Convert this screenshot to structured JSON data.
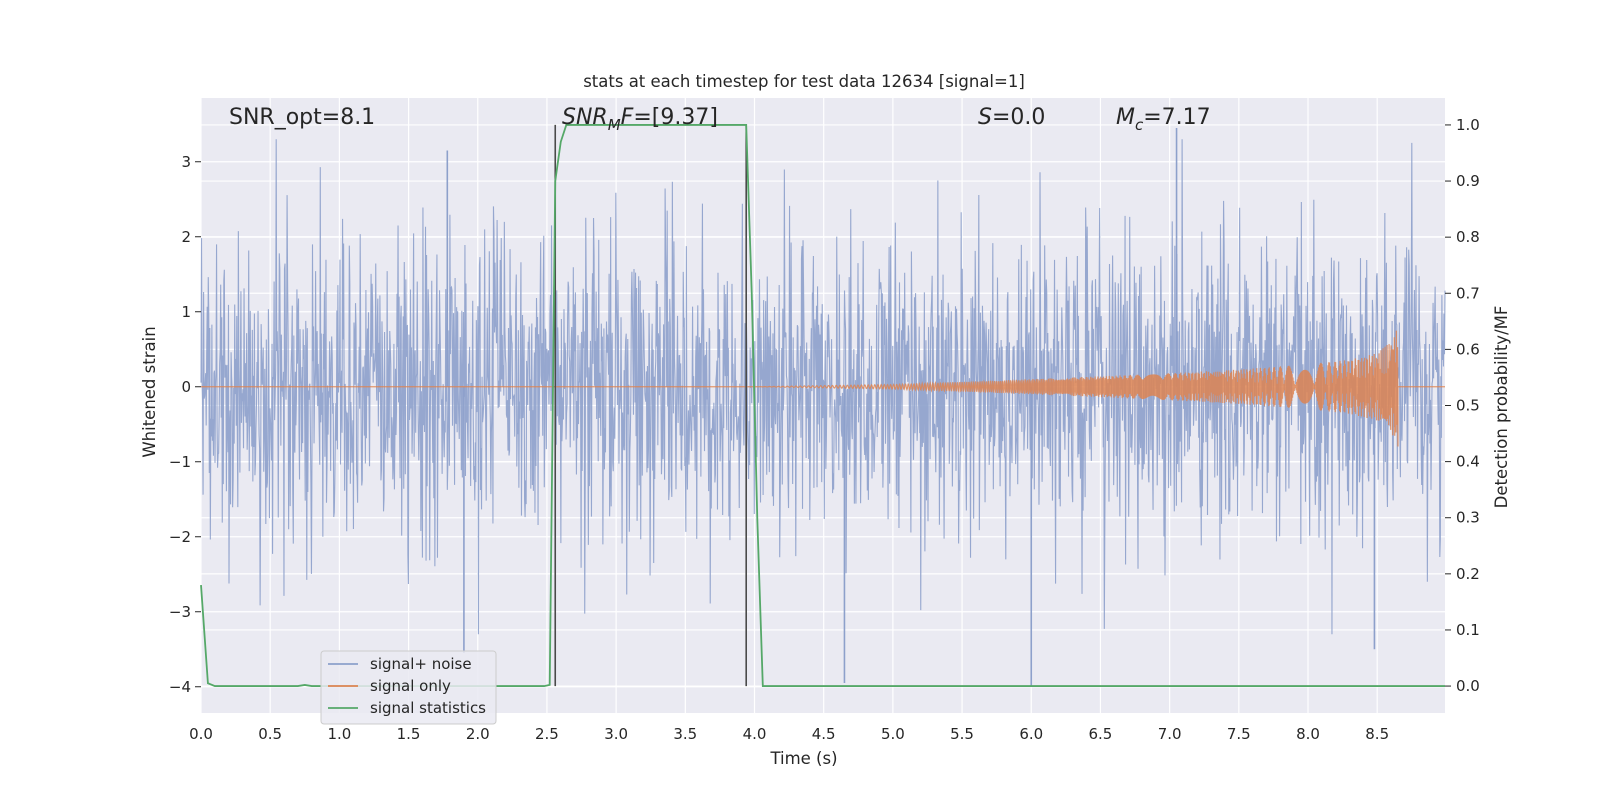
{
  "chart_data": {
    "type": "line",
    "title": "stats at each timestep for test data 12634 [signal=1]",
    "xlabel": "Time (s)",
    "ylabel": "Whitened strain",
    "y2label": "Detection probability/MF",
    "xlim": [
      0,
      8.99
    ],
    "ylim": [
      -4.35,
      3.85
    ],
    "y2lim": [
      -0.048,
      1.048
    ],
    "x_ticks": [
      "0.0",
      "0.5",
      "1.0",
      "1.5",
      "2.0",
      "2.5",
      "3.0",
      "3.5",
      "4.0",
      "4.5",
      "5.0",
      "5.5",
      "6.0",
      "6.5",
      "7.0",
      "7.5",
      "8.0",
      "8.5"
    ],
    "y_ticks": [
      "3",
      "2",
      "1",
      "0",
      "−1",
      "−2",
      "−3",
      "−4"
    ],
    "y2_ticks": [
      "1.0",
      "0.9",
      "0.8",
      "0.7",
      "0.6",
      "0.5",
      "0.4",
      "0.3",
      "0.2",
      "0.1",
      "0.0"
    ],
    "grid": true,
    "legend_position": "lower-left",
    "annotations": {
      "snr_opt": "SNR_opt=8.1",
      "snr_mf_var": "SNR",
      "snr_mf_sub": "M",
      "snr_mf_rest": "F",
      "snr_mf_value": "=[9.37]",
      "s_var": "S",
      "s_value": "=0.0",
      "mc_var": "M",
      "mc_sub": "c",
      "mc_value": "=7.17"
    },
    "vertical_markers": [
      2.56,
      3.94
    ],
    "series": [
      {
        "name": "signal+ noise",
        "axis": "left",
        "color": "#8da0cb",
        "kind": "noise",
        "typical_envelope": [
          -1.9,
          1.9
        ],
        "peaks": [
          [
            1.78,
            3.15
          ],
          [
            7.05,
            3.45
          ],
          [
            4.65,
            -3.95
          ],
          [
            6.0,
            -4.0
          ],
          [
            1.9,
            -3.55
          ],
          [
            8.48,
            -3.5
          ]
        ]
      },
      {
        "name": "signal only",
        "axis": "left",
        "color": "#dd8452",
        "kind": "chirp",
        "start": 4.0,
        "end": 8.65,
        "amplitude_points": [
          [
            4.0,
            0.0
          ],
          [
            5.0,
            0.03
          ],
          [
            6.0,
            0.1
          ],
          [
            7.0,
            0.18
          ],
          [
            7.5,
            0.23
          ],
          [
            8.0,
            0.3
          ],
          [
            8.3,
            0.36
          ],
          [
            8.5,
            0.45
          ],
          [
            8.6,
            0.6
          ],
          [
            8.65,
            0.8
          ]
        ]
      },
      {
        "name": "signal statistics",
        "axis": "right",
        "color": "#55a868",
        "x": [
          0.0,
          0.05,
          0.1,
          0.15,
          0.5,
          0.7,
          0.75,
          0.8,
          1.0,
          2.0,
          2.48,
          2.52,
          2.56,
          2.6,
          2.64,
          2.7,
          3.0,
          3.5,
          3.94,
          3.98,
          4.02,
          4.06,
          4.1,
          5.0,
          6.0,
          7.0,
          8.0,
          8.99
        ],
        "values": [
          0.18,
          0.005,
          0.0,
          0.0,
          0.0,
          0.0,
          0.002,
          0.0,
          0.0,
          0.0,
          0.0,
          0.002,
          0.9,
          0.97,
          1.0,
          1.0,
          1.0,
          1.0,
          1.0,
          0.7,
          0.3,
          0.0,
          0.0,
          0.0,
          0.0,
          0.0,
          0.0,
          0.0
        ]
      }
    ],
    "colors": {
      "background": "#eaeaf2",
      "grid": "#ffffff",
      "marker": "#4a4a4a"
    }
  }
}
